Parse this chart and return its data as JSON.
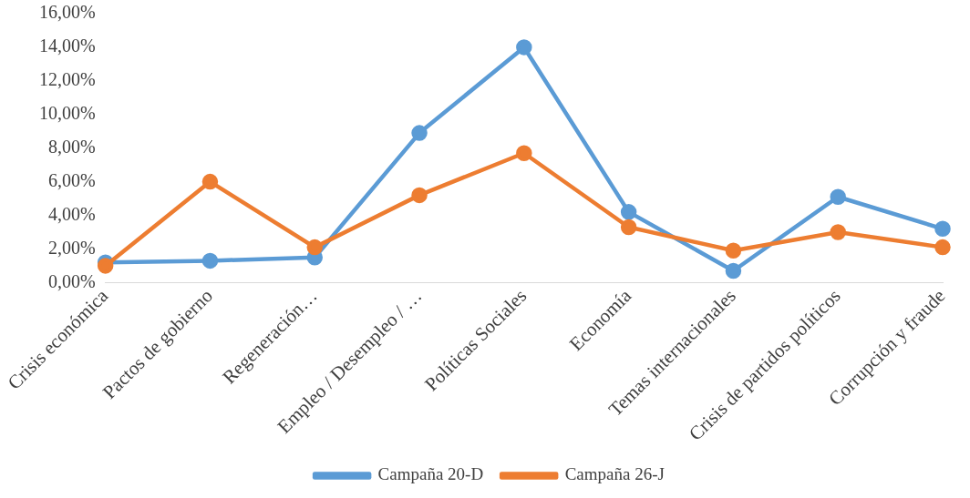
{
  "chart_data": {
    "type": "line",
    "categories": [
      "Crisis económica",
      "Pactos de gobierno",
      "Regeneración…",
      "Empleo / Desempleo / …",
      "Políticas Sociales",
      "Economía",
      "Temas internacionales",
      "Crisis de partidos políticos",
      "Corrupción y fraude"
    ],
    "series": [
      {
        "name": "Campaña 20-D",
        "color": "#5b9bd5",
        "values": [
          1.2,
          1.3,
          1.5,
          8.9,
          14.0,
          4.2,
          0.7,
          5.1,
          3.2
        ]
      },
      {
        "name": "Campaña 26-J",
        "color": "#ed7d31",
        "values": [
          1.0,
          6.0,
          2.1,
          5.2,
          7.7,
          3.3,
          1.9,
          3.0,
          2.1
        ]
      }
    ],
    "ylim": [
      0,
      16
    ],
    "yticks": [
      {
        "value": 0,
        "label": "0,00%"
      },
      {
        "value": 2,
        "label": "2,00%"
      },
      {
        "value": 4,
        "label": "4,00%"
      },
      {
        "value": 6,
        "label": "6,00%"
      },
      {
        "value": 8,
        "label": "8,00%"
      },
      {
        "value": 10,
        "label": "10,00%"
      },
      {
        "value": 12,
        "label": "12,00%"
      },
      {
        "value": 14,
        "label": "14,00%"
      },
      {
        "value": 16,
        "label": "16,00%"
      }
    ],
    "grid": false,
    "legend": "bottom",
    "marker": "circle",
    "line_style": "solid"
  }
}
